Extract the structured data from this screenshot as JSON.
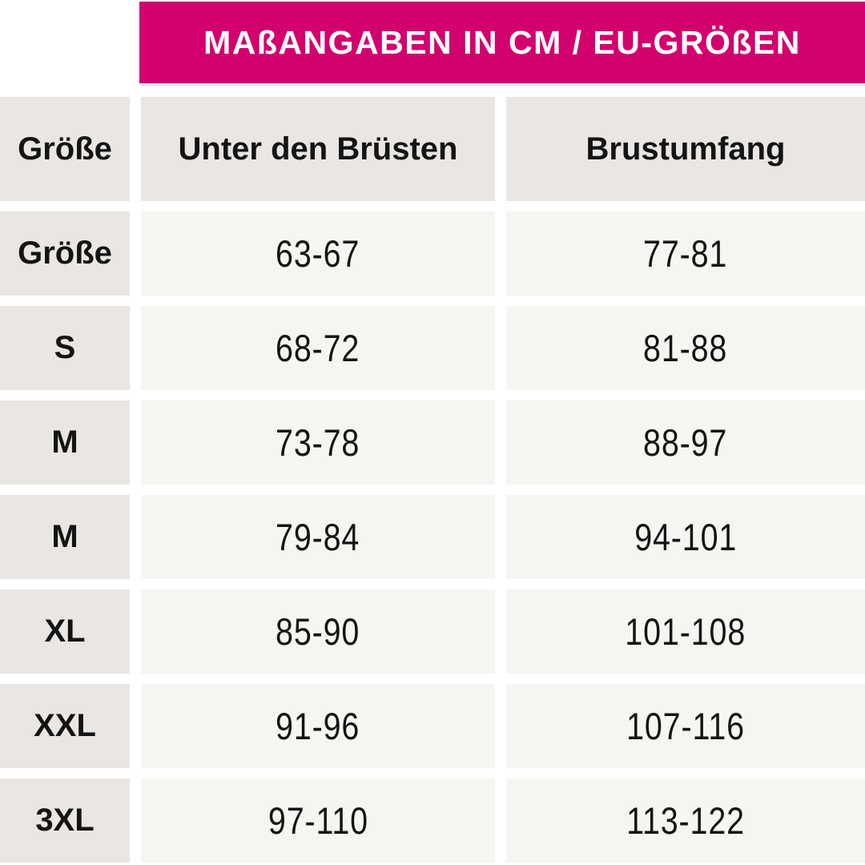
{
  "banner": {
    "title": "MAßANGABEN IN CM / EU-GRÖßEN"
  },
  "table": {
    "header": {
      "size": "Größe",
      "under_bust": "Unter den Brüsten",
      "bust": "Brustumfang"
    },
    "rows": [
      {
        "size": "Größe",
        "under_bust": "63-67",
        "bust": "77-81"
      },
      {
        "size": "S",
        "under_bust": "68-72",
        "bust": "81-88"
      },
      {
        "size": "M",
        "under_bust": "73-78",
        "bust": "88-97"
      },
      {
        "size": "M",
        "under_bust": "79-84",
        "bust": "94-101"
      },
      {
        "size": "XL",
        "under_bust": "85-90",
        "bust": "101-108"
      },
      {
        "size": "XXL",
        "under_bust": "91-96",
        "bust": "107-116"
      },
      {
        "size": "3XL",
        "under_bust": "97-110",
        "bust": "113-122"
      }
    ]
  },
  "colors": {
    "accent_pink": "#d2016d",
    "banner_text": "#ffffff",
    "header_cell_bg": "#e9e6e3",
    "value_cell_bg": "#f7f5f2",
    "text": "#141414"
  },
  "chart_data": {
    "type": "table",
    "title": "MAßANGABEN IN CM / EU-GRÖßEN",
    "columns": [
      "Größe",
      "Unter den Brüsten",
      "Brustumfang"
    ],
    "rows": [
      [
        "Größe",
        "63-67",
        "77-81"
      ],
      [
        "S",
        "68-72",
        "81-88"
      ],
      [
        "M",
        "73-78",
        "88-97"
      ],
      [
        "M",
        "79-84",
        "94-101"
      ],
      [
        "XL",
        "85-90",
        "101-108"
      ],
      [
        "XXL",
        "91-96",
        "107-116"
      ],
      [
        "3XL",
        "97-110",
        "113-122"
      ]
    ],
    "units": "cm",
    "sizing_system": "EU"
  }
}
